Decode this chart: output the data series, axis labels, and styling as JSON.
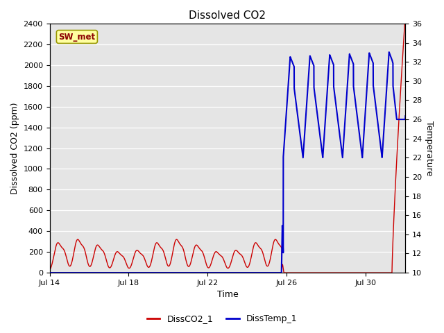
{
  "title": "Dissolved CO2",
  "xlabel": "Time",
  "ylabel_left": "Dissolved CO2 (ppm)",
  "ylabel_right": "Temperature",
  "annotation_text": "SW_met",
  "legend_labels": [
    "DissCO2_1",
    "DissTemp_1"
  ],
  "co2_color": "#cc0000",
  "temp_color": "#0000cc",
  "ylim_left": [
    0,
    2400
  ],
  "yticks_left": [
    0,
    200,
    400,
    600,
    800,
    1000,
    1200,
    1400,
    1600,
    1800,
    2000,
    2200,
    2400
  ],
  "yticks_right": [
    10,
    12,
    14,
    16,
    18,
    20,
    22,
    24,
    26,
    28,
    30,
    32,
    34,
    36
  ],
  "bg_color": "#e5e5e5",
  "title_fontsize": 11,
  "axis_label_fontsize": 9,
  "tick_fontsize": 8,
  "x_tick_labels": [
    "Jul 14",
    "Jul 18",
    "Jul 22",
    "Jul 26",
    "Jul 30"
  ],
  "x_tick_positions": [
    0,
    4,
    8,
    12,
    16
  ]
}
